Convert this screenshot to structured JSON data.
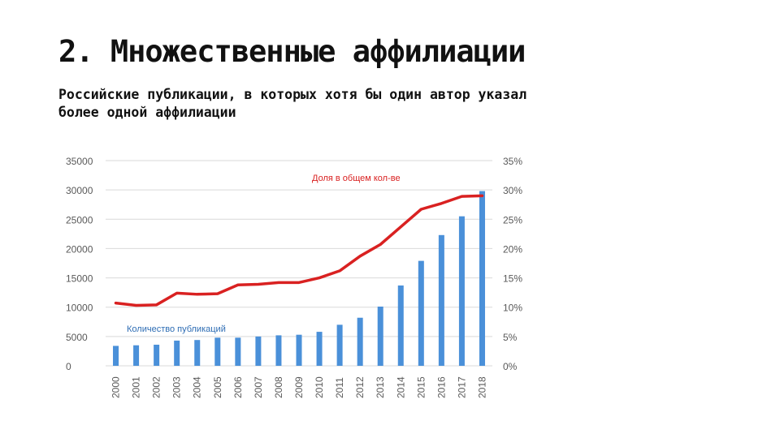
{
  "slide": {
    "title": "2. Множественные аффилиации",
    "subtitle": "Российские публикации, в которых хотя бы один автор указал более одной аффилиации"
  },
  "chart_data": {
    "type": "bar+line",
    "categories": [
      "2000",
      "2001",
      "2002",
      "2003",
      "2004",
      "2005",
      "2006",
      "2007",
      "2008",
      "2009",
      "2010",
      "2011",
      "2012",
      "2013",
      "2014",
      "2015",
      "2016",
      "2017",
      "2018"
    ],
    "series": [
      {
        "name": "Количество публикаций",
        "type": "bar",
        "axis": "left",
        "color": "#4a90d9",
        "values": [
          3400,
          3500,
          3600,
          4300,
          4400,
          4800,
          4800,
          5000,
          5200,
          5300,
          5800,
          7000,
          8200,
          10100,
          13700,
          17900,
          22300,
          25500,
          29800
        ]
      },
      {
        "name": "Доля в общем кол-ве",
        "type": "line",
        "axis": "right",
        "color": "#d92121",
        "values": [
          10.7,
          10.3,
          10.4,
          12.4,
          12.2,
          12.3,
          13.8,
          13.9,
          14.2,
          14.2,
          15.0,
          16.2,
          18.7,
          20.7,
          23.7,
          26.7,
          27.7,
          28.9,
          29.0
        ]
      }
    ],
    "y_left": {
      "ticks": [
        "0",
        "5000",
        "10000",
        "15000",
        "20000",
        "25000",
        "30000",
        "35000"
      ],
      "min": 0,
      "max": 35000
    },
    "y_right": {
      "ticks": [
        "0%",
        "5%",
        "10%",
        "15%",
        "20%",
        "25%",
        "30%",
        "35%"
      ],
      "min": 0,
      "max": 35
    },
    "grid": true,
    "legend": "inline labels"
  }
}
